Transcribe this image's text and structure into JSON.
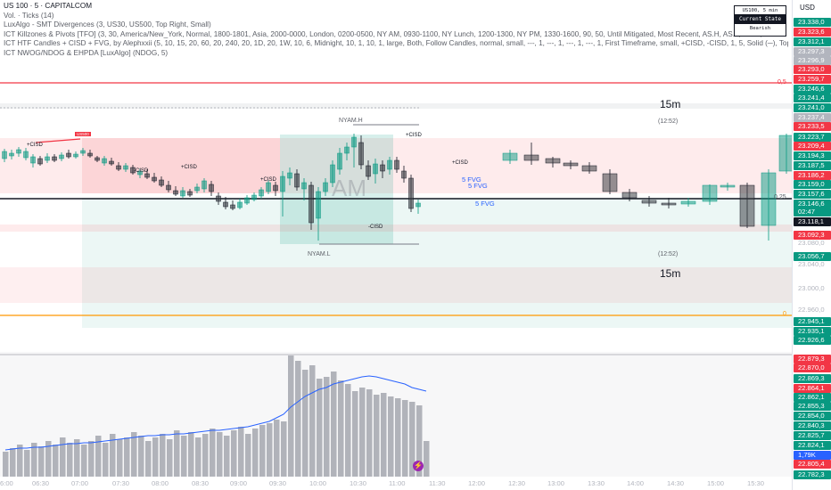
{
  "legend": {
    "title": "US 100 · 5 · CAPITALCOM",
    "lines": [
      "Vol. · Ticks (14)",
      "LuxAlgo - SMT Divergences (3, US30, US500, Top Right, Small)",
      "ICT Killzones & Pivots [TFO] (3, 30, America/New_York, Normal, 1800-1801, Asia, 2000-0000, London, 0200-0500, NY AM, 0930-1100, NY Lunch, 1200-1300, NY PM, 1330-1600, 90, 50, Until Mitigated, Most Recent, AS.H, AS.L, LO.H, LO.L",
      "ICT HTF Candles + CISD + FVG, by Alephxxii (5, 10, 15, 20, 60, 20, 240, 20, 1D, 20, 1W, 10, 6, Midnight, 10, 1, 10, 1, large, Both, Follow Candles, normal, small, ---, 1, ---, 1, ---, 1, ---, 1, First Timeframe, small, +CISD, -CISD, 1, 5, Solid (─), Top",
      "ICT NWOG/NDOG & EHPDA [LuxAlgo] (NDOG, 5)"
    ]
  },
  "currency": "USD",
  "smt_panel": {
    "header": "US100, 5 min",
    "state_label": "Current State",
    "state_value": "Bearish"
  },
  "price_labels": [
    {
      "text": "23.338,0",
      "c": "g"
    },
    {
      "text": "23.323,6",
      "c": "r"
    },
    {
      "text": "23.312,1",
      "c": "g"
    },
    {
      "text": "23.297,3",
      "c": "k"
    },
    {
      "text": "23.296,9",
      "c": "k"
    },
    {
      "text": "23.293,0",
      "c": "r"
    },
    {
      "text": "23.259,7",
      "c": "r"
    },
    {
      "text": "23.246,6",
      "c": "g"
    },
    {
      "text": "23.241,4",
      "c": "g"
    },
    {
      "text": "23.241,0",
      "c": "g"
    },
    {
      "text": "23.237,4",
      "c": "k"
    },
    {
      "text": "23.233,5",
      "c": "r"
    },
    {
      "text": "23.223,7",
      "c": "g"
    },
    {
      "text": "23.209,4",
      "c": "r"
    },
    {
      "text": "23.194,3",
      "c": "g"
    },
    {
      "text": "23.187,5",
      "c": "g"
    },
    {
      "text": "23.186,2",
      "c": "r"
    },
    {
      "text": "23.159,0",
      "c": "g"
    },
    {
      "text": "23.157,6",
      "c": "g"
    },
    {
      "text": "23.146,6",
      "c": "g"
    },
    {
      "text": "02:47",
      "c": "g"
    },
    {
      "text": "23.118,1",
      "c": "d"
    },
    {
      "text": "23.092,3",
      "c": "r"
    },
    {
      "text": "23.080,0",
      "c": "t"
    },
    {
      "text": "23.056,7",
      "c": "g"
    },
    {
      "text": "23.040,0",
      "c": "t"
    },
    {
      "text": "23.000,0",
      "c": "t"
    },
    {
      "text": "22.960,0",
      "c": "t"
    },
    {
      "text": "22.945,1",
      "c": "g"
    },
    {
      "text": "22.935,1",
      "c": "g"
    },
    {
      "text": "22.926,6",
      "c": "g"
    },
    {
      "text": "22.879,3",
      "c": "r"
    },
    {
      "text": "22.870,0",
      "c": "r"
    },
    {
      "text": "22.869,3",
      "c": "g"
    },
    {
      "text": "22.864,1",
      "c": "r"
    },
    {
      "text": "22.862,1",
      "c": "g"
    },
    {
      "text": "22.855,3",
      "c": "g"
    },
    {
      "text": "22.854,0",
      "c": "g"
    },
    {
      "text": "22.840,3",
      "c": "g"
    },
    {
      "text": "22.825,7",
      "c": "g"
    },
    {
      "text": "22.824,1",
      "c": "g"
    },
    {
      "text": "1,79K",
      "c": "b"
    },
    {
      "text": "22.805,4",
      "c": "r"
    },
    {
      "text": "22.782,3",
      "c": "g"
    }
  ],
  "time_labels": [
    "6:00",
    "06:30",
    "07:00",
    "07:30",
    "08:00",
    "08:30",
    "09:00",
    "09:30",
    "10:00",
    "10:30",
    "11:00",
    "11:30",
    "12:00",
    "12:30",
    "13:00",
    "13:30",
    "14:00",
    "14:30",
    "15:00",
    "15:30"
  ],
  "annotations": {
    "nyam_h": "NYAM.H",
    "nyam_l": "NYAM.L",
    "am": "AM",
    "fvg1": "5 FVG",
    "fvg2": "5 FVG",
    "fvg3": "5 FVG",
    "tf_top": "15m",
    "tf_bottom": "15m",
    "timer_top": "(12:52)",
    "timer_bottom": "(12:52)",
    "fib_top": "0,5",
    "fib_mid": "0,25",
    "fib_bottom": "0",
    "cisd_plus": "+CISD",
    "cisd_minus": "-CISD",
    "smt_tag": "US500"
  },
  "colors": {
    "bull": "#089981",
    "bear": "#f23645",
    "accent": "#2962ff"
  }
}
